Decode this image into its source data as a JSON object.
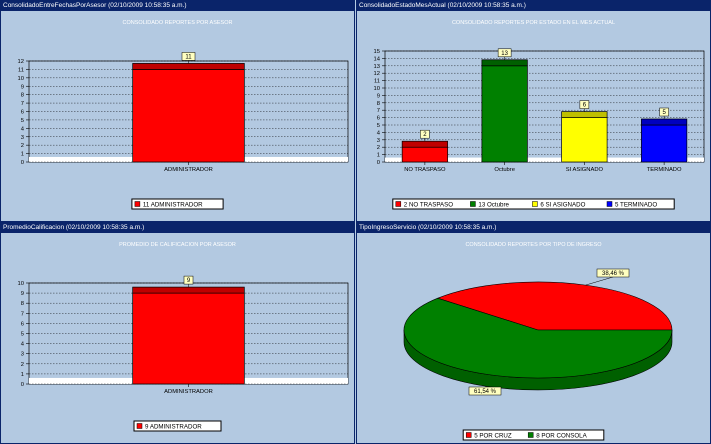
{
  "panels": [
    {
      "title": "ConsolidadoEntreFechasPorAsesor (02/10/2009 10:58:35 a.m.)"
    },
    {
      "title": "ConsolidadoEstadoMesActual (02/10/2009 10:58:35 a.m.)"
    },
    {
      "title": "PromedioCalificacion (02/10/2009 10:58:35 a.m.)"
    },
    {
      "title": "TipoIngresoServicio (02/10/2009 10:58:35 a.m.)"
    }
  ],
  "chart_data": [
    {
      "type": "bar",
      "title": "CONSOLIDADO REPORTES POR ASESOR",
      "categories": [
        "ADMINISTRADOR"
      ],
      "values": [
        11
      ],
      "colors": [
        "#ff0000"
      ],
      "ylim": [
        0,
        12
      ],
      "yticks": [
        0,
        1,
        2,
        3,
        4,
        5,
        6,
        7,
        8,
        9,
        10,
        11,
        12
      ],
      "legend": [
        "11 ADMINISTRADOR"
      ],
      "grid": true,
      "legend_position": "bottom"
    },
    {
      "type": "bar",
      "title": "CONSOLIDADO REPORTES POR ESTADO EN EL MES ACTUAL",
      "categories": [
        "NO TRASPASO",
        "Octubre",
        "SI ASIGNADO",
        "TERMINADO"
      ],
      "values": [
        2,
        13,
        6,
        5
      ],
      "colors": [
        "#ff0000",
        "#008000",
        "#ffff00",
        "#0000ff"
      ],
      "ylim": [
        0,
        15
      ],
      "yticks": [
        0,
        1,
        2,
        3,
        4,
        5,
        6,
        7,
        8,
        9,
        10,
        11,
        12,
        13,
        14,
        15
      ],
      "legend": [
        "2 NO TRASPASO",
        "13 Octubre",
        "6 SI ASIGNADO",
        "5 TERMINADO"
      ],
      "grid": true,
      "legend_position": "bottom"
    },
    {
      "type": "bar",
      "title": "PROMEDIO DE CALIFICACION POR ASESOR",
      "categories": [
        "ADMINISTRADOR"
      ],
      "values": [
        9
      ],
      "colors": [
        "#ff0000"
      ],
      "ylim": [
        0,
        10
      ],
      "yticks": [
        0,
        1,
        2,
        3,
        4,
        5,
        6,
        7,
        8,
        9,
        10
      ],
      "legend": [
        "9 ADMINISTRADOR"
      ],
      "grid": true,
      "legend_position": "bottom"
    },
    {
      "type": "pie",
      "title": "CONSOLIDADO REPORTES POR TIPO DE INGRESO",
      "categories": [
        "POR CRUZ",
        "POR CONSOLA"
      ],
      "values": [
        5,
        8
      ],
      "percent_labels": [
        "38,46 %",
        "61,54 %"
      ],
      "colors": [
        "#ff0000",
        "#008000"
      ],
      "legend": [
        "5 POR CRUZ",
        "8 POR CONSOLA"
      ],
      "legend_position": "bottom"
    }
  ]
}
